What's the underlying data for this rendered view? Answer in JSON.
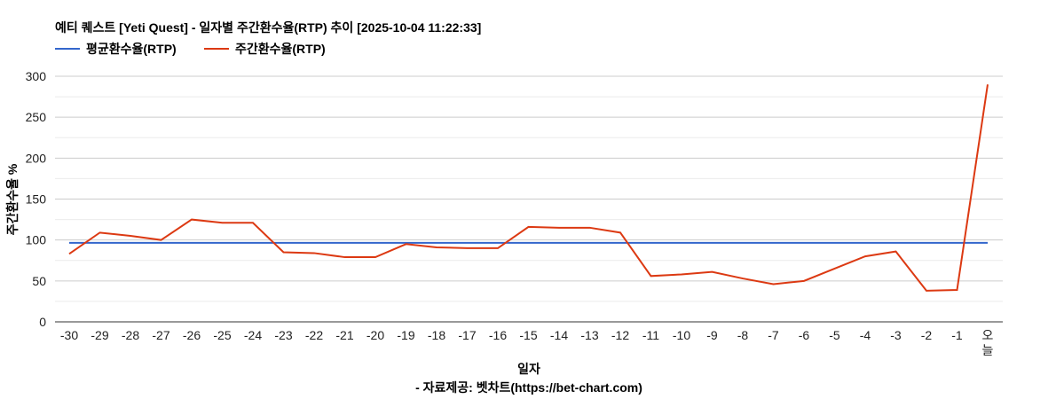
{
  "chart_data": {
    "type": "line",
    "title": "예티 퀘스트 [Yeti Quest] - 일자별 주간환수율(RTP) 추이 [2025-10-04 11:22:33]",
    "xlabel": "일자",
    "ylabel": "주간환수율 %",
    "source": "- 자료제공: 벳차트(https://bet-chart.com)",
    "categories": [
      "-30",
      "-29",
      "-28",
      "-27",
      "-26",
      "-25",
      "-24",
      "-23",
      "-22",
      "-21",
      "-20",
      "-19",
      "-18",
      "-17",
      "-16",
      "-15",
      "-14",
      "-13",
      "-12",
      "-11",
      "-10",
      "-9",
      "-8",
      "-7",
      "-6",
      "-5",
      "-4",
      "-3",
      "-2",
      "-1",
      "오늘"
    ],
    "ylim": [
      0,
      300
    ],
    "yticks": [
      0,
      50,
      100,
      150,
      200,
      250,
      300
    ],
    "grid": true,
    "legend_position": "top-left",
    "series": [
      {
        "name": "평균환수율(RTP)",
        "color": "#3366cc",
        "values": [
          96.5,
          96.5,
          96.5,
          96.5,
          96.5,
          96.5,
          96.5,
          96.5,
          96.5,
          96.5,
          96.5,
          96.5,
          96.5,
          96.5,
          96.5,
          96.5,
          96.5,
          96.5,
          96.5,
          96.5,
          96.5,
          96.5,
          96.5,
          96.5,
          96.5,
          96.5,
          96.5,
          96.5,
          96.5,
          96.5,
          96.5
        ]
      },
      {
        "name": "주간환수율(RTP)",
        "color": "#dc3912",
        "values": [
          83,
          109,
          105,
          100,
          125,
          121,
          121,
          85,
          84,
          79,
          79,
          95,
          91,
          90,
          90,
          116,
          115,
          115,
          109,
          56,
          58,
          61,
          53,
          46,
          50,
          65,
          80,
          86,
          38,
          39,
          290
        ]
      }
    ]
  }
}
